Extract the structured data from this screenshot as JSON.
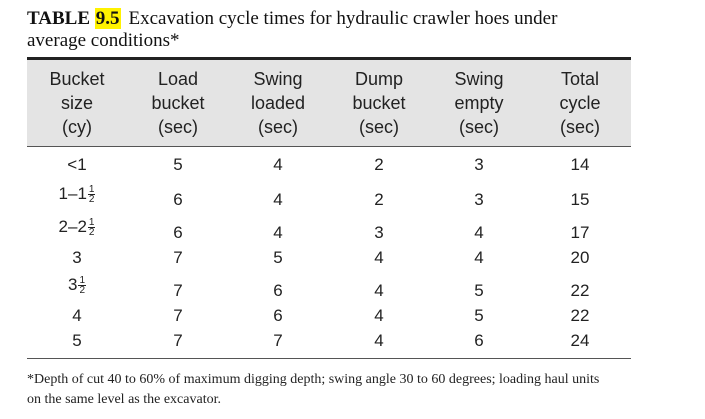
{
  "title": {
    "label": "TABLE",
    "number": "9.5",
    "caption": "Excavation cycle times for hydraulic crawler hoes under",
    "caption_line2": "average conditions*"
  },
  "columns": [
    {
      "lines": [
        "Bucket",
        "size",
        "(cy)"
      ]
    },
    {
      "lines": [
        "Load",
        "bucket",
        "(sec)"
      ]
    },
    {
      "lines": [
        "Swing",
        "loaded",
        "(sec)"
      ]
    },
    {
      "lines": [
        "Dump",
        "bucket",
        "(sec)"
      ]
    },
    {
      "lines": [
        "Swing",
        "empty",
        "(sec)"
      ]
    },
    {
      "lines": [
        "Total",
        "cycle",
        "(sec)"
      ]
    }
  ],
  "rows": [
    {
      "size": {
        "whole": "<1",
        "num": "",
        "den": ""
      },
      "values": [
        "5",
        "4",
        "2",
        "3",
        "14"
      ]
    },
    {
      "size": {
        "whole": "1–1",
        "num": "1",
        "den": "2"
      },
      "values": [
        "6",
        "4",
        "2",
        "3",
        "15"
      ]
    },
    {
      "size": {
        "whole": "2–2",
        "num": "1",
        "den": "2"
      },
      "values": [
        "6",
        "4",
        "3",
        "4",
        "17"
      ]
    },
    {
      "size": {
        "whole": "3",
        "num": "",
        "den": ""
      },
      "values": [
        "7",
        "5",
        "4",
        "4",
        "20"
      ]
    },
    {
      "size": {
        "whole": "3",
        "num": "1",
        "den": "2"
      },
      "values": [
        "7",
        "6",
        "4",
        "5",
        "22"
      ]
    },
    {
      "size": {
        "whole": "4",
        "num": "",
        "den": ""
      },
      "values": [
        "7",
        "6",
        "4",
        "5",
        "22"
      ]
    },
    {
      "size": {
        "whole": "5",
        "num": "",
        "den": ""
      },
      "values": [
        "7",
        "7",
        "4",
        "6",
        "24"
      ]
    }
  ],
  "footnote": {
    "line1": "*Depth of cut 40 to 60% of maximum digging depth; swing angle 30 to 60 degrees; loading haul units",
    "line2": "on the same level as the excavator."
  }
}
